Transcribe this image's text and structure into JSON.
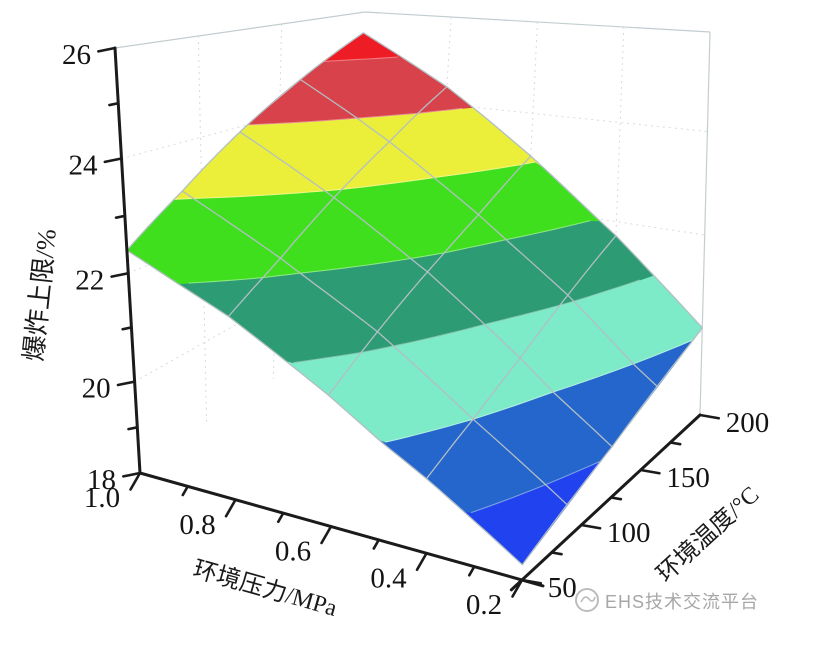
{
  "chart_data": {
    "type": "surface3d",
    "title": "",
    "xlabel": "环境压力/MPa",
    "ylabel": "环境温度/°C",
    "zlabel": "爆炸上限/%",
    "x_tick_labels": [
      "1.0",
      "0.8",
      "0.6",
      "0.4",
      "0.2"
    ],
    "x_tick_values_MPa": [
      1.0,
      0.8,
      0.6,
      0.4,
      0.2
    ],
    "x_minor_ticks_MPa": [
      0.9,
      0.7,
      0.5,
      0.3
    ],
    "y_tick_labels": [
      "50",
      "100",
      "150",
      "200"
    ],
    "y_tick_values_C": [
      50,
      100,
      150,
      200
    ],
    "y_minor_ticks_C": [
      75,
      125,
      175
    ],
    "z_tick_labels": [
      "18",
      "20",
      "22",
      "24",
      "26"
    ],
    "z_tick_values_pct": [
      18,
      20,
      22,
      24,
      26
    ],
    "z_minor_ticks_pct": [
      19,
      21,
      23,
      25
    ],
    "xlim_MPa": [
      0.2,
      1.0
    ],
    "ylim_C": [
      50,
      200
    ],
    "zlim_pct": [
      18,
      26
    ],
    "grid_on_walls": true,
    "legend": null,
    "surface_grid": {
      "pressure_MPa": [
        0.2,
        0.4,
        0.6,
        0.8,
        1.0
      ],
      "temperature_C": [
        50,
        87.5,
        125,
        162.5,
        200
      ],
      "explosion_upper_limit_pct": [
        [
          18.3,
          18.7,
          19.1,
          19.6,
          20.1
        ],
        [
          19.5,
          20.0,
          20.5,
          21.1,
          21.7
        ],
        [
          20.6,
          21.2,
          21.8,
          22.4,
          23.1
        ],
        [
          21.6,
          22.2,
          22.9,
          23.6,
          24.4
        ],
        [
          22.4,
          23.1,
          23.9,
          24.7,
          25.5
        ]
      ]
    },
    "contour_band_levels_pct": [
      18,
      19,
      20,
      21,
      22,
      23,
      24,
      25,
      26
    ],
    "band_colors": [
      "#2042ef",
      "#2566cd",
      "#7deac8",
      "#2d9b74",
      "#3fdf1e",
      "#ebef3a",
      "#d8424b",
      "#ee1c24"
    ],
    "colors": {
      "axis": "#1b1b1b",
      "tick_label": "#141414",
      "mesh_line": "#b2bfc3",
      "wall_edge": "#c3cdd0",
      "wall_grid": "#d6dbdd",
      "contour_line": "rgba(255,255,255,0.4)",
      "background": "#ffffff"
    }
  },
  "watermark": {
    "text": "EHS技术交流平台"
  }
}
